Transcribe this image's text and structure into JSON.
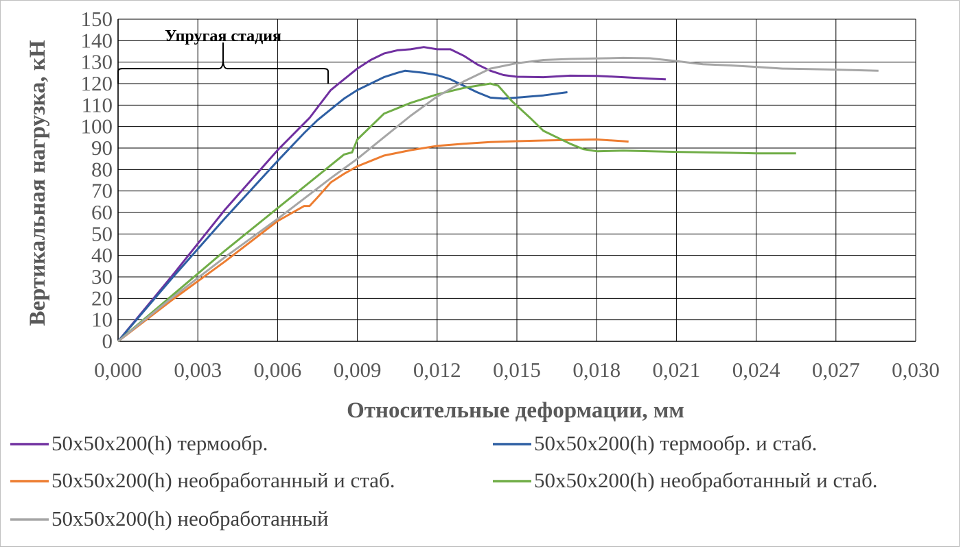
{
  "chart_data": {
    "type": "line",
    "xlabel": "Относительные деформации, мм",
    "ylabel": "Вертикальная нагрузка, кН",
    "xlim": [
      0,
      0.03
    ],
    "ylim": [
      0,
      150
    ],
    "x_ticks": [
      "0,000",
      "0,003",
      "0,006",
      "0,009",
      "0,012",
      "0,015",
      "0,018",
      "0,021",
      "0,024",
      "0,027",
      "0,030"
    ],
    "y_ticks": [
      "0",
      "10",
      "20",
      "30",
      "40",
      "50",
      "60",
      "70",
      "80",
      "90",
      "100",
      "110",
      "120",
      "130",
      "140",
      "150"
    ],
    "grid": true,
    "legend_position": "bottom",
    "annotation": {
      "text": "Упругая стадия",
      "x_start": 0.0,
      "x_end": 0.0079,
      "y": 127
    },
    "series": [
      {
        "name": "50x50x200(h)  термообр.",
        "color": "#7030a0",
        "points": [
          [
            0,
            0
          ],
          [
            0.002,
            30
          ],
          [
            0.004,
            61
          ],
          [
            0.006,
            89
          ],
          [
            0.0072,
            104
          ],
          [
            0.008,
            117
          ],
          [
            0.0085,
            122
          ],
          [
            0.009,
            127
          ],
          [
            0.0095,
            131
          ],
          [
            0.01,
            134
          ],
          [
            0.0105,
            135.5
          ],
          [
            0.011,
            136
          ],
          [
            0.0115,
            137
          ],
          [
            0.012,
            136
          ],
          [
            0.0125,
            136
          ],
          [
            0.013,
            133
          ],
          [
            0.0135,
            129
          ],
          [
            0.014,
            126
          ],
          [
            0.0145,
            124
          ],
          [
            0.015,
            123.2
          ],
          [
            0.016,
            123
          ],
          [
            0.017,
            123.7
          ],
          [
            0.018,
            123.6
          ],
          [
            0.019,
            123
          ],
          [
            0.02,
            122.3
          ],
          [
            0.0206,
            122
          ]
        ]
      },
      {
        "name": "50x50x200(h)  термообр. и стаб.",
        "color": "#2e5fa3",
        "points": [
          [
            0,
            0
          ],
          [
            0.002,
            29
          ],
          [
            0.004,
            57
          ],
          [
            0.006,
            84
          ],
          [
            0.007,
            97
          ],
          [
            0.0075,
            103
          ],
          [
            0.008,
            108
          ],
          [
            0.0085,
            113
          ],
          [
            0.009,
            117
          ],
          [
            0.0095,
            120
          ],
          [
            0.01,
            123
          ],
          [
            0.0105,
            125
          ],
          [
            0.0108,
            126
          ],
          [
            0.0115,
            125
          ],
          [
            0.012,
            124
          ],
          [
            0.0125,
            122
          ],
          [
            0.013,
            119
          ],
          [
            0.0135,
            116
          ],
          [
            0.014,
            113.5
          ],
          [
            0.0145,
            113
          ],
          [
            0.015,
            113.5
          ],
          [
            0.016,
            114.5
          ],
          [
            0.0169,
            116
          ]
        ]
      },
      {
        "name": "50x50x200(h)  необработанный и стаб.",
        "color": "#ed7d31",
        "points": [
          [
            0,
            0
          ],
          [
            0.002,
            19
          ],
          [
            0.004,
            37
          ],
          [
            0.006,
            56
          ],
          [
            0.007,
            63
          ],
          [
            0.0072,
            63
          ],
          [
            0.0075,
            67
          ],
          [
            0.008,
            74
          ],
          [
            0.0085,
            78
          ],
          [
            0.009,
            81.5
          ],
          [
            0.0095,
            84
          ],
          [
            0.01,
            86.5
          ],
          [
            0.011,
            89
          ],
          [
            0.012,
            91
          ],
          [
            0.013,
            92
          ],
          [
            0.014,
            92.8
          ],
          [
            0.015,
            93.2
          ],
          [
            0.016,
            93.5
          ],
          [
            0.017,
            93.8
          ],
          [
            0.018,
            94
          ],
          [
            0.019,
            93.2
          ],
          [
            0.0192,
            93
          ]
        ]
      },
      {
        "name": "50x50x200(h)  необработанный и стаб.",
        "color": "#70ad47",
        "points": [
          [
            0,
            0
          ],
          [
            0.002,
            21
          ],
          [
            0.004,
            42
          ],
          [
            0.006,
            62
          ],
          [
            0.008,
            82
          ],
          [
            0.0085,
            87
          ],
          [
            0.0088,
            88
          ],
          [
            0.009,
            94
          ],
          [
            0.0095,
            100
          ],
          [
            0.01,
            106
          ],
          [
            0.011,
            111
          ],
          [
            0.012,
            115
          ],
          [
            0.013,
            118
          ],
          [
            0.0135,
            119
          ],
          [
            0.014,
            120
          ],
          [
            0.0143,
            119
          ],
          [
            0.0148,
            112
          ],
          [
            0.0155,
            104
          ],
          [
            0.016,
            98
          ],
          [
            0.017,
            92
          ],
          [
            0.0175,
            89.5
          ],
          [
            0.018,
            88.5
          ],
          [
            0.019,
            88.8
          ],
          [
            0.021,
            88.2
          ],
          [
            0.023,
            87.8
          ],
          [
            0.024,
            87.5
          ],
          [
            0.0255,
            87.5
          ]
        ]
      },
      {
        "name": "50x50x200(h)  необработанный",
        "color": "#a6a6a6",
        "points": [
          [
            0,
            0
          ],
          [
            0.002,
            20
          ],
          [
            0.004,
            39
          ],
          [
            0.006,
            57
          ],
          [
            0.008,
            76
          ],
          [
            0.009,
            85
          ],
          [
            0.01,
            95
          ],
          [
            0.011,
            105
          ],
          [
            0.012,
            114
          ],
          [
            0.013,
            121
          ],
          [
            0.0135,
            124
          ],
          [
            0.014,
            127
          ],
          [
            0.015,
            129.5
          ],
          [
            0.016,
            131
          ],
          [
            0.017,
            131.5
          ],
          [
            0.018,
            131.7
          ],
          [
            0.019,
            132
          ],
          [
            0.02,
            131.8
          ],
          [
            0.021,
            130.5
          ],
          [
            0.022,
            129
          ],
          [
            0.023,
            128.5
          ],
          [
            0.024,
            127.8
          ],
          [
            0.025,
            127
          ],
          [
            0.026,
            126.8
          ],
          [
            0.027,
            126.5
          ],
          [
            0.028,
            126.2
          ],
          [
            0.0286,
            126
          ]
        ]
      }
    ]
  }
}
